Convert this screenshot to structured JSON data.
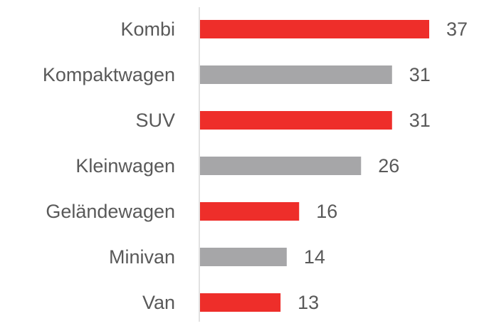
{
  "chart_data": {
    "type": "bar",
    "orientation": "horizontal",
    "categories": [
      "Kombi",
      "Kompaktwagen",
      "SUV",
      "Kleinwagen",
      "Geländewagen",
      "Minivan",
      "Van"
    ],
    "values": [
      37,
      31,
      31,
      26,
      16,
      14,
      13
    ],
    "bar_colors": [
      "#ee2e2a",
      "#a6a6a8",
      "#ee2e2a",
      "#a6a6a8",
      "#ee2e2a",
      "#a6a6a8",
      "#ee2e2a"
    ],
    "label_color": "#595959",
    "axis_color": "#d9d9d9",
    "xlim": [
      0,
      37
    ],
    "data_labels": true,
    "grid": false,
    "legend": "none"
  }
}
